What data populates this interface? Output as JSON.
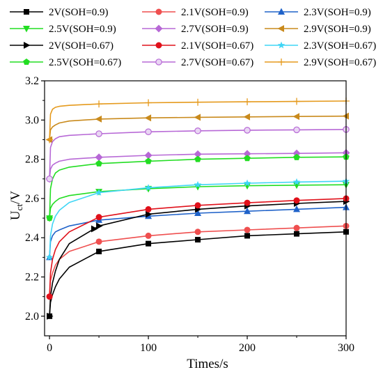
{
  "chart_data": {
    "type": "line",
    "title": "",
    "xlabel": "Times/s",
    "ylabel_main": "U",
    "ylabel_sub": "ct",
    "ylabel_tail": "/V",
    "xlim": [
      -5,
      300
    ],
    "ylim": [
      1.9,
      3.2
    ],
    "xticks": [
      0,
      100,
      200,
      300
    ],
    "xtick_labels": [
      "0",
      "100",
      "200",
      "300"
    ],
    "yticks": [
      2.0,
      2.2,
      2.4,
      2.6,
      2.8,
      3.0,
      3.2
    ],
    "ytick_labels": [
      "2.0",
      "2.2",
      "2.4",
      "2.6",
      "2.8",
      "3.0",
      "3.2"
    ],
    "legend_position": "top, 3 columns",
    "series": [
      {
        "name": "2V(SOH=0.9)",
        "color": "#000000",
        "marker": "square",
        "start": 2.0,
        "x": [
          0,
          1,
          3,
          6,
          10,
          20,
          50,
          100,
          150,
          200,
          250,
          300
        ],
        "y": [
          2.0,
          2.07,
          2.11,
          2.15,
          2.19,
          2.25,
          2.33,
          2.37,
          2.39,
          2.41,
          2.42,
          2.43
        ],
        "marker_x": [
          0,
          50,
          100,
          150,
          200,
          250,
          300
        ]
      },
      {
        "name": "2.1V(SOH=0.9)",
        "color": "#ef4f4f",
        "marker": "circle",
        "start": 2.1,
        "x": [
          0,
          1,
          3,
          6,
          10,
          20,
          50,
          100,
          150,
          200,
          250,
          300
        ],
        "y": [
          2.1,
          2.18,
          2.22,
          2.26,
          2.29,
          2.33,
          2.38,
          2.41,
          2.43,
          2.44,
          2.45,
          2.46
        ],
        "marker_x": [
          0,
          50,
          100,
          150,
          200,
          250,
          300
        ]
      },
      {
        "name": "2.3V(SOH=0.9)",
        "color": "#1f62c9",
        "marker": "triangle-up",
        "start": 2.3,
        "x": [
          0,
          1,
          3,
          6,
          10,
          20,
          50,
          100,
          150,
          200,
          250,
          300
        ],
        "y": [
          2.3,
          2.38,
          2.41,
          2.43,
          2.44,
          2.46,
          2.49,
          2.51,
          2.525,
          2.535,
          2.545,
          2.555
        ],
        "marker_x": [
          0,
          50,
          100,
          150,
          200,
          250,
          300
        ]
      },
      {
        "name": "2.5V(SOH=0.9)",
        "color": "#22dd22",
        "marker": "triangle-down",
        "start": 2.5,
        "x": [
          0,
          1,
          3,
          6,
          10,
          20,
          50,
          100,
          150,
          200,
          250,
          300
        ],
        "y": [
          2.5,
          2.55,
          2.57,
          2.585,
          2.6,
          2.615,
          2.635,
          2.65,
          2.66,
          2.665,
          2.668,
          2.67
        ],
        "marker_x": [
          0,
          50,
          100,
          150,
          200,
          250,
          300
        ]
      },
      {
        "name": "2.7V(SOH=0.9)",
        "color": "#b768d6",
        "marker": "diamond",
        "start": 2.7,
        "x": [
          0,
          1,
          3,
          6,
          10,
          20,
          50,
          100,
          150,
          200,
          250,
          300
        ],
        "y": [
          2.7,
          2.75,
          2.77,
          2.78,
          2.79,
          2.8,
          2.81,
          2.82,
          2.826,
          2.828,
          2.83,
          2.833
        ],
        "marker_x": [
          0,
          50,
          100,
          150,
          200,
          250,
          300
        ]
      },
      {
        "name": "2.9V(SOH=0.9)",
        "color": "#c98a1c",
        "marker": "triangle-left",
        "start": 2.9,
        "x": [
          0,
          1,
          3,
          6,
          10,
          20,
          50,
          100,
          150,
          200,
          250,
          300
        ],
        "y": [
          2.9,
          2.95,
          2.965,
          2.975,
          2.985,
          2.995,
          3.005,
          3.011,
          3.014,
          3.016,
          3.018,
          3.02
        ],
        "marker_x": [
          0,
          50,
          100,
          150,
          200,
          250,
          300
        ]
      },
      {
        "name": "2V(SOH=0.67)",
        "color": "#000000",
        "marker": "triangle-right",
        "start": 2.0,
        "x": [
          0,
          1,
          3,
          6,
          10,
          20,
          50,
          100,
          150,
          200,
          250,
          300
        ],
        "y": [
          2.0,
          2.1,
          2.17,
          2.23,
          2.29,
          2.37,
          2.46,
          2.52,
          2.545,
          2.562,
          2.575,
          2.585
        ],
        "marker_x": [
          0,
          45,
          50,
          100,
          150,
          200,
          250,
          300
        ]
      },
      {
        "name": "2.1V(SOH=0.67)",
        "color": "#e0101a",
        "marker": "circle",
        "start": 2.1,
        "x": [
          0,
          1,
          3,
          6,
          10,
          20,
          50,
          100,
          150,
          200,
          250,
          300
        ],
        "y": [
          2.1,
          2.22,
          2.29,
          2.34,
          2.38,
          2.43,
          2.505,
          2.545,
          2.565,
          2.578,
          2.59,
          2.6
        ],
        "marker_x": [
          0,
          50,
          100,
          150,
          200,
          250,
          300
        ]
      },
      {
        "name": "2.3V(SOH=0.67)",
        "color": "#3fd5f5",
        "marker": "star",
        "start": 2.3,
        "x": [
          0,
          1,
          3,
          6,
          10,
          20,
          50,
          100,
          150,
          200,
          250,
          300
        ],
        "y": [
          2.3,
          2.41,
          2.47,
          2.51,
          2.54,
          2.58,
          2.63,
          2.655,
          2.67,
          2.678,
          2.684,
          2.688
        ],
        "marker_x": [
          0,
          50,
          100,
          150,
          200,
          250,
          300
        ]
      },
      {
        "name": "2.5V(SOH=0.67)",
        "color": "#22dd22",
        "marker": "pentagon",
        "start": 2.5,
        "x": [
          0,
          1,
          3,
          6,
          10,
          20,
          50,
          100,
          150,
          200,
          250,
          300
        ],
        "y": [
          2.5,
          2.65,
          2.7,
          2.73,
          2.745,
          2.76,
          2.778,
          2.79,
          2.8,
          2.805,
          2.81,
          2.812
        ],
        "marker_x": [
          0,
          50,
          100,
          150,
          200,
          250,
          300
        ]
      },
      {
        "name": "2.7V(SOH=0.67)",
        "color": "#b768d6",
        "marker": "circle-open",
        "start": 2.7,
        "x": [
          0,
          1,
          3,
          6,
          10,
          20,
          50,
          100,
          150,
          200,
          250,
          300
        ],
        "y": [
          2.7,
          2.86,
          2.89,
          2.905,
          2.915,
          2.922,
          2.93,
          2.94,
          2.945,
          2.948,
          2.95,
          2.952
        ],
        "marker_x": [
          0,
          50,
          100,
          150,
          200,
          250,
          300
        ]
      },
      {
        "name": "2.9V(SOH=0.67)",
        "color": "#e59a1d",
        "marker": "plus",
        "start": 2.9,
        "x": [
          0,
          1,
          3,
          6,
          10,
          20,
          50,
          100,
          150,
          200,
          250,
          300
        ],
        "y": [
          2.9,
          3.03,
          3.055,
          3.065,
          3.07,
          3.075,
          3.082,
          3.088,
          3.091,
          3.093,
          3.095,
          3.097
        ],
        "marker_x": [
          0,
          50,
          100,
          150,
          200,
          250,
          300
        ]
      }
    ]
  }
}
